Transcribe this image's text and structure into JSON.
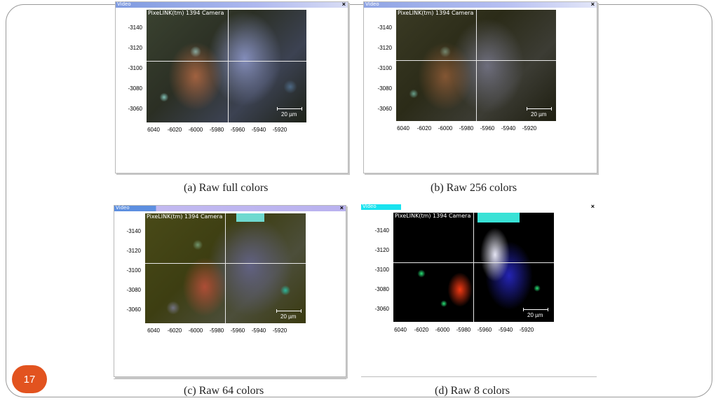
{
  "slide_number": "17",
  "window_title": "Video",
  "camera_label": "PixeLINK(tm) 1394 Camera",
  "scale_label": "20 µm",
  "y_ticks": [
    "-3140",
    "-3120",
    "-3100",
    "-3080",
    "-3060"
  ],
  "x_ticks": [
    "6040",
    "-6020",
    "-6000",
    "-5980",
    "-5960",
    "-5940",
    "-5920"
  ],
  "panels": [
    {
      "caption": "(a)  Raw full colors",
      "mode": "full"
    },
    {
      "caption": "(b)  Raw 256 colors",
      "mode": "256"
    },
    {
      "caption": "(c)  Raw 64 colors",
      "mode": "64"
    },
    {
      "caption": "(d)  Raw 8 colors",
      "mode": "8"
    }
  ],
  "colors": {
    "accent": "#e2531f",
    "titlebar_a": "#6f8fd6",
    "titlebar_b": "#c7c8f2",
    "titlebar_d": "#19e3ef"
  }
}
